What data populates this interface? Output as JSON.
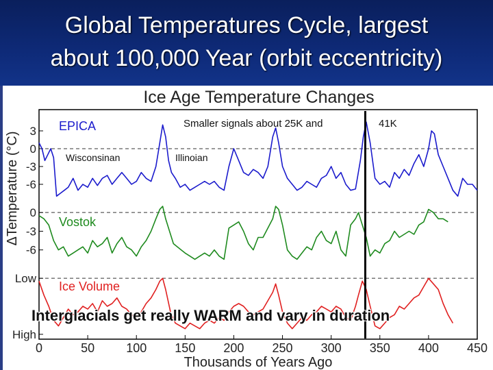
{
  "slide": {
    "title_line1": "Global Temperatures Cycle, largest",
    "title_line2": "about 100,000 Year (orbit eccentricity)"
  },
  "annotations": {
    "smaller_signals": "Smaller signals about 25K and",
    "k41": "41K",
    "wisconsinan": "Wisconsinan",
    "illinoian": "Illinoian",
    "interglacials": "Interglacials get really WARM and vary in duration"
  },
  "chart_data": {
    "type": "line",
    "title": "Ice Age Temperature Changes",
    "xlabel": "Thousands of Years Ago",
    "ylabel": "ΔTemperature (°C)",
    "xlim": [
      0,
      450
    ],
    "x_ticks": [
      0,
      50,
      100,
      150,
      200,
      250,
      300,
      350,
      400,
      450
    ],
    "vertical_marker_x": 335,
    "panels": [
      {
        "name": "EPICA",
        "color": "#1a1acc",
        "ytick_labels": [
          "3",
          "0",
          "-3",
          "-6"
        ],
        "ytick_values": [
          3,
          0,
          -3,
          -6
        ],
        "ylim": [
          -9,
          6
        ],
        "dashed_value": 0,
        "series": {
          "x": [
            0,
            3,
            6,
            9,
            12,
            15,
            18,
            22,
            26,
            30,
            35,
            40,
            45,
            50,
            55,
            60,
            65,
            70,
            75,
            80,
            85,
            90,
            95,
            100,
            105,
            110,
            115,
            120,
            124,
            127,
            130,
            133,
            136,
            140,
            145,
            150,
            155,
            160,
            165,
            170,
            175,
            180,
            185,
            190,
            195,
            200,
            205,
            210,
            215,
            220,
            225,
            230,
            235,
            240,
            243,
            246,
            250,
            255,
            260,
            265,
            270,
            275,
            280,
            285,
            290,
            295,
            300,
            305,
            310,
            315,
            320,
            325,
            330,
            333,
            336,
            340,
            345,
            350,
            355,
            360,
            365,
            370,
            375,
            380,
            385,
            390,
            395,
            400,
            403,
            406,
            410,
            415,
            420,
            425,
            430,
            435,
            440,
            445,
            450
          ],
          "values": [
            1,
            0,
            -2,
            -1,
            0,
            -1.5,
            -8,
            -7.5,
            -7,
            -6.5,
            -5,
            -7,
            -6,
            -6.5,
            -5,
            -6.2,
            -5,
            -4.5,
            -6,
            -5,
            -4,
            -5,
            -6,
            -5.5,
            -4,
            -5,
            -5.5,
            -3,
            1,
            4,
            2,
            -2,
            -4,
            -5,
            -6.5,
            -6,
            -7,
            -6.5,
            -6,
            -5.5,
            -6,
            -5.5,
            -6.5,
            -7,
            -3,
            0,
            -2,
            -4,
            -4.5,
            -3.5,
            -4,
            -5,
            -3,
            2,
            3.5,
            1,
            -3,
            -5,
            -6,
            -7,
            -6.5,
            -5.5,
            -6,
            -6.5,
            -5,
            -4.5,
            -3,
            -5,
            -4,
            -6,
            -7,
            -6.8,
            -2,
            2,
            4.5,
            1,
            -5,
            -6,
            -5.5,
            -6.5,
            -4,
            -5,
            -3.5,
            -4.5,
            -2.5,
            -1,
            -3,
            0,
            3,
            2.5,
            -1,
            -3,
            -5,
            -7,
            -8,
            -5,
            -6,
            -6,
            -7
          ]
        }
      },
      {
        "name": "Vostok",
        "color": "#1e8a1e",
        "ytick_labels": [
          "0",
          "-3",
          "-6"
        ],
        "ytick_values": [
          0,
          -3,
          -6
        ],
        "ylim": [
          -9,
          2
        ],
        "dashed_value": 0,
        "series": {
          "x": [
            0,
            5,
            10,
            15,
            20,
            25,
            30,
            35,
            40,
            45,
            50,
            55,
            60,
            65,
            70,
            75,
            80,
            85,
            90,
            95,
            100,
            105,
            110,
            115,
            120,
            124,
            127,
            130,
            134,
            138,
            142,
            146,
            150,
            155,
            160,
            165,
            170,
            175,
            180,
            185,
            190,
            195,
            200,
            205,
            210,
            215,
            220,
            225,
            230,
            235,
            240,
            243,
            246,
            250,
            255,
            260,
            265,
            270,
            275,
            280,
            285,
            290,
            295,
            300,
            305,
            310,
            315,
            320,
            325,
            328,
            332,
            336,
            340,
            345,
            350,
            355,
            360,
            365,
            370,
            375,
            380,
            385,
            390,
            395,
            400,
            405,
            410,
            415,
            420
          ],
          "values": [
            -0.5,
            -1,
            -2,
            -4.5,
            -6,
            -5.5,
            -7,
            -6.5,
            -6,
            -5.5,
            -6.5,
            -4.5,
            -5.5,
            -5,
            -4,
            -6.5,
            -5,
            -4,
            -5.5,
            -6,
            -7,
            -5.5,
            -4.5,
            -3,
            -1,
            0.5,
            1,
            -1,
            -3,
            -5,
            -5.5,
            -6,
            -6.5,
            -7,
            -7.5,
            -7,
            -6.5,
            -7,
            -6,
            -7,
            -7.5,
            -2.5,
            -2,
            -1.5,
            -3,
            -5,
            -6,
            -4,
            -4,
            -2.5,
            -1,
            1,
            0.5,
            -2,
            -6,
            -7,
            -7.5,
            -6.5,
            -5.5,
            -6,
            -4,
            -3,
            -4.5,
            -5,
            -3,
            -6,
            -7,
            -2,
            -1,
            0,
            -2,
            -4,
            -7,
            -6,
            -6.5,
            -5,
            -4.5,
            -3,
            -4,
            -3.5,
            -3,
            -3.5,
            -2,
            -1.5,
            0.5,
            0,
            -1,
            -1,
            -1.5
          ]
        }
      },
      {
        "name": "Ice Volume",
        "color": "#e02020",
        "ytick_labels": [
          "Low",
          "High"
        ],
        "ytick_values": [
          1,
          0
        ],
        "ylim": [
          -0.05,
          1.1
        ],
        "dashed_value": 1,
        "series": {
          "x": [
            0,
            5,
            10,
            15,
            20,
            25,
            30,
            35,
            40,
            45,
            50,
            55,
            60,
            65,
            70,
            75,
            80,
            85,
            90,
            95,
            100,
            105,
            110,
            115,
            120,
            124,
            127,
            130,
            135,
            140,
            145,
            150,
            155,
            160,
            165,
            170,
            175,
            180,
            185,
            190,
            195,
            200,
            205,
            210,
            215,
            220,
            225,
            230,
            235,
            240,
            243,
            246,
            250,
            255,
            260,
            265,
            270,
            275,
            280,
            285,
            290,
            295,
            300,
            305,
            310,
            315,
            320,
            325,
            328,
            332,
            336,
            340,
            345,
            350,
            355,
            360,
            365,
            370,
            375,
            380,
            385,
            390,
            395,
            400,
            405,
            410,
            415,
            420,
            425
          ],
          "values": [
            0.95,
            0.7,
            0.5,
            0.25,
            0.15,
            0.3,
            0.45,
            0.35,
            0.4,
            0.5,
            0.45,
            0.55,
            0.4,
            0.6,
            0.5,
            0.55,
            0.65,
            0.5,
            0.45,
            0.35,
            0.3,
            0.4,
            0.55,
            0.65,
            0.8,
            0.95,
            1.0,
            0.8,
            0.4,
            0.2,
            0.15,
            0.1,
            0.2,
            0.15,
            0.1,
            0.2,
            0.25,
            0.2,
            0.3,
            0.25,
            0.4,
            0.5,
            0.55,
            0.5,
            0.4,
            0.35,
            0.4,
            0.45,
            0.6,
            0.75,
            0.9,
            0.7,
            0.4,
            0.2,
            0.1,
            0.2,
            0.3,
            0.25,
            0.35,
            0.4,
            0.5,
            0.45,
            0.4,
            0.5,
            0.45,
            0.3,
            0.25,
            0.5,
            0.7,
            0.95,
            0.8,
            0.5,
            0.15,
            0.1,
            0.2,
            0.3,
            0.35,
            0.5,
            0.45,
            0.55,
            0.65,
            0.7,
            0.85,
            1.0,
            0.9,
            0.8,
            0.55,
            0.35,
            0.2
          ]
        }
      }
    ]
  }
}
